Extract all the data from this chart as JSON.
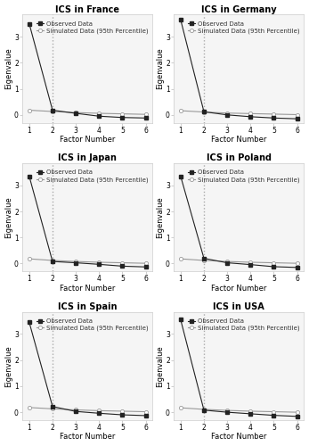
{
  "countries": [
    "France",
    "Germany",
    "Japan",
    "Poland",
    "Spain",
    "USA"
  ],
  "observed": {
    "France": [
      3.5,
      0.18,
      0.06,
      -0.05,
      -0.1,
      -0.12
    ],
    "Germany": [
      3.65,
      0.12,
      0.0,
      -0.07,
      -0.12,
      -0.15
    ],
    "Japan": [
      3.35,
      0.08,
      0.03,
      -0.03,
      -0.1,
      -0.13
    ],
    "Poland": [
      3.35,
      0.2,
      0.03,
      -0.04,
      -0.12,
      -0.15
    ],
    "Spain": [
      3.45,
      0.22,
      0.03,
      -0.04,
      -0.1,
      -0.13
    ],
    "USA": [
      3.55,
      0.08,
      0.0,
      -0.06,
      -0.12,
      -0.16
    ]
  },
  "simulated": {
    "France": [
      0.18,
      0.13,
      0.09,
      0.06,
      0.04,
      0.02
    ],
    "Germany": [
      0.16,
      0.11,
      0.07,
      0.05,
      0.03,
      0.01
    ],
    "Japan": [
      0.18,
      0.12,
      0.08,
      0.05,
      0.03,
      0.01
    ],
    "Poland": [
      0.18,
      0.12,
      0.08,
      0.05,
      0.03,
      0.01
    ],
    "Spain": [
      0.18,
      0.13,
      0.09,
      0.06,
      0.04,
      0.02
    ],
    "USA": [
      0.17,
      0.11,
      0.07,
      0.04,
      0.02,
      0.0
    ]
  },
  "x": [
    1,
    2,
    3,
    4,
    5,
    6
  ],
  "vline_x": 2,
  "ylim": [
    -0.3,
    3.85
  ],
  "yticks": [
    0,
    1,
    2,
    3
  ],
  "xlabel": "Factor Number",
  "ylabel": "Eigenvalue",
  "observed_color": "#222222",
  "simulated_color": "#999999",
  "vline_color": "#aaaaaa",
  "legend_observed": "Observed Data",
  "legend_simulated": "Simulated Data (95th Percentile)",
  "title_prefix": "ICS in ",
  "title_fontsize": 7.0,
  "label_fontsize": 6.0,
  "tick_fontsize": 5.5,
  "legend_fontsize": 5.0,
  "linewidth": 0.8,
  "markersize": 3.0
}
